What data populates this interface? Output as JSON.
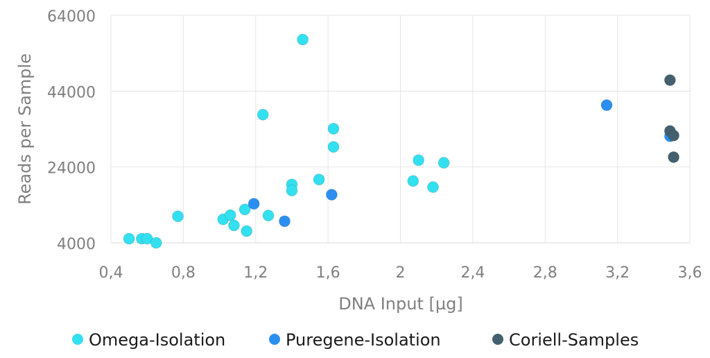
{
  "chart_data": {
    "type": "scatter",
    "title": "",
    "xlabel": "DNA Input  [µg]",
    "ylabel": "Reads per Sample",
    "xlim": [
      0.4,
      3.6
    ],
    "ylim": [
      4000,
      64000
    ],
    "xticks": [
      0.4,
      0.8,
      1.2,
      1.6,
      2,
      2.4,
      2.8,
      3.2,
      3.6
    ],
    "xtick_labels": [
      "0,4",
      "0,8",
      "1,2",
      "1,6",
      "2",
      "2,4",
      "2,8",
      "3,2",
      "3,6"
    ],
    "yticks": [
      4000,
      24000,
      44000,
      64000
    ],
    "ytick_labels": [
      "4000",
      "24000",
      "44000",
      "64000"
    ],
    "grid": true,
    "legend_position": "bottom",
    "series": [
      {
        "name": "Omega-Isolation",
        "color": "#33e0f0",
        "points": [
          [
            0.5,
            5100
          ],
          [
            0.57,
            5100
          ],
          [
            0.6,
            5100
          ],
          [
            0.65,
            4000
          ],
          [
            0.77,
            11000
          ],
          [
            1.02,
            10200
          ],
          [
            1.06,
            11300
          ],
          [
            1.08,
            8600
          ],
          [
            1.14,
            12800
          ],
          [
            1.15,
            7100
          ],
          [
            1.27,
            11200
          ],
          [
            1.24,
            37800
          ],
          [
            1.46,
            57600
          ],
          [
            1.4,
            19400
          ],
          [
            1.4,
            17800
          ],
          [
            1.55,
            20700
          ],
          [
            1.63,
            34100
          ],
          [
            1.63,
            29300
          ],
          [
            2.07,
            20300
          ],
          [
            2.1,
            25800
          ],
          [
            2.18,
            18700
          ],
          [
            2.24,
            25100
          ]
        ]
      },
      {
        "name": "Puregene-Isolation",
        "color": "#2a8ff0",
        "points": [
          [
            1.19,
            14300
          ],
          [
            1.36,
            9700
          ],
          [
            1.62,
            16700
          ],
          [
            3.14,
            40300
          ],
          [
            3.49,
            32100
          ]
        ]
      },
      {
        "name": "Coriell-Samples",
        "color": "#44606e",
        "points": [
          [
            3.49,
            46900
          ],
          [
            3.49,
            33500
          ],
          [
            3.51,
            32300
          ],
          [
            3.51,
            26600
          ]
        ]
      }
    ]
  }
}
